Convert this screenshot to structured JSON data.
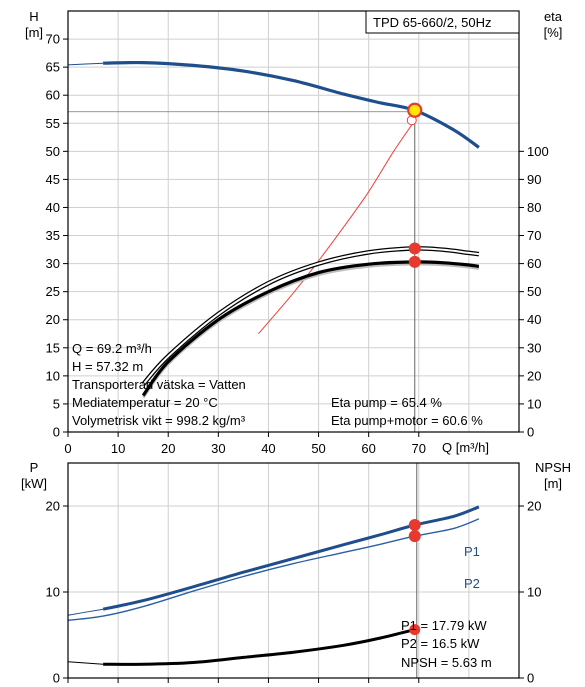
{
  "colors": {
    "curve_blue": "#1f4e8c",
    "thin_blue": "#2b5fa3",
    "operating_point": "#e8392f",
    "duty_marker_fill": "#ffe800",
    "system_curve": "#f0423a",
    "grid": "#cfcfcf",
    "black": "#000000"
  },
  "chart_data": [
    {
      "type": "line",
      "title": "TPD 65-660/2, 50Hz",
      "ylabel_left": "H",
      "ylabel_left_unit": "[m]",
      "ylabel_right": "eta",
      "ylabel_right_unit": "[%]",
      "xlabel": "Q [m³/h]",
      "xlim": [
        0,
        90
      ],
      "ylim": [
        0,
        75
      ],
      "ylim_right": [
        0,
        150
      ],
      "x_ticks": [
        "0",
        "10",
        "20",
        "30",
        "40",
        "50",
        "60",
        "70"
      ],
      "y_ticks": [
        "0",
        "5",
        "10",
        "15",
        "20",
        "25",
        "30",
        "35",
        "40",
        "45",
        "50",
        "55",
        "60",
        "65",
        "70"
      ],
      "y_right_ticks": [
        "0",
        "10",
        "20",
        "30",
        "40",
        "50",
        "60",
        "70",
        "80",
        "90",
        "100"
      ],
      "grid": true,
      "series": [
        {
          "name": "H",
          "axis": "left",
          "x": [
            0,
            7,
            15,
            25,
            35,
            45,
            55,
            62,
            69.2,
            77,
            82
          ],
          "y": [
            65.4,
            65.7,
            65.8,
            65.3,
            64.3,
            62.6,
            60.2,
            58.7,
            57.3,
            53.8,
            50.7
          ]
        },
        {
          "name": "Eta pump",
          "axis": "right",
          "x": [
            15,
            20,
            30,
            40,
            50,
            60,
            69.2,
            75,
            80,
            82
          ],
          "y": [
            17,
            27,
            42,
            53,
            60,
            64,
            65.4,
            64.9,
            63.8,
            63.4
          ]
        },
        {
          "name": "Eta pump+motor",
          "axis": "right",
          "x": [
            15,
            20,
            30,
            40,
            50,
            60,
            69.2,
            75,
            80,
            82
          ],
          "y": [
            13,
            25,
            40,
            50,
            56.8,
            59.8,
            60.6,
            60.3,
            59.5,
            59
          ]
        },
        {
          "name": "System",
          "axis": "left",
          "x": [
            38,
            45,
            50,
            55,
            60,
            65,
            69.2
          ],
          "y": [
            17.5,
            24.8,
            30.5,
            36.5,
            42.8,
            50,
            55.5
          ]
        }
      ],
      "operating_point": {
        "Q": 69.2,
        "H": 57.32,
        "eta_pump": 65.4,
        "eta_pump_motor": 60.6
      },
      "info_left": [
        "Q = 69.2 m³/h",
        "H = 57.32 m",
        "Transporterad vätska = Vatten",
        "Mediatemperatur = 20 °C",
        "Volymetrisk vikt = 998.2 kg/m³"
      ],
      "info_right": [
        "Eta pump = 65.4 %",
        "Eta pump+motor = 60.6 %"
      ]
    },
    {
      "type": "line",
      "ylabel_left": "P",
      "ylabel_left_unit": "[kW]",
      "ylabel_right": "NPSH",
      "ylabel_right_unit": "[m]",
      "xlim": [
        0,
        90
      ],
      "ylim": [
        0,
        25
      ],
      "ylim_right": [
        0,
        25
      ],
      "y_ticks": [
        "0",
        "10",
        "20"
      ],
      "y_right_ticks": [
        "0",
        "10",
        "20"
      ],
      "grid": true,
      "series": [
        {
          "name": "P1",
          "axis": "left",
          "x": [
            0,
            7,
            15,
            25,
            35,
            45,
            55,
            62,
            69.2,
            77,
            82
          ],
          "y": [
            7.3,
            8,
            9,
            10.6,
            12.3,
            13.9,
            15.5,
            16.6,
            17.79,
            18.8,
            19.9
          ]
        },
        {
          "name": "P2",
          "axis": "left",
          "x": [
            0,
            7,
            15,
            25,
            35,
            45,
            55,
            62,
            69.2,
            77,
            82
          ],
          "y": [
            6.7,
            7.2,
            8.3,
            10.1,
            11.8,
            13.3,
            14.6,
            15.5,
            16.5,
            17.4,
            18.5
          ]
        },
        {
          "name": "NPSH",
          "axis": "right",
          "x": [
            0,
            7,
            15,
            25,
            35,
            45,
            55,
            62,
            69.2
          ],
          "y": [
            1.9,
            1.6,
            1.6,
            1.8,
            2.4,
            3,
            3.8,
            4.6,
            5.63
          ]
        }
      ],
      "operating_point": {
        "Q": 69.2,
        "P1": 17.79,
        "P2": 16.5,
        "NPSH": 5.63
      },
      "series_labels": [
        "P1",
        "P2"
      ],
      "info": [
        "P1 = 17.79 kW",
        "P2 = 16.5 kW",
        "NPSH = 5.63 m"
      ]
    }
  ]
}
